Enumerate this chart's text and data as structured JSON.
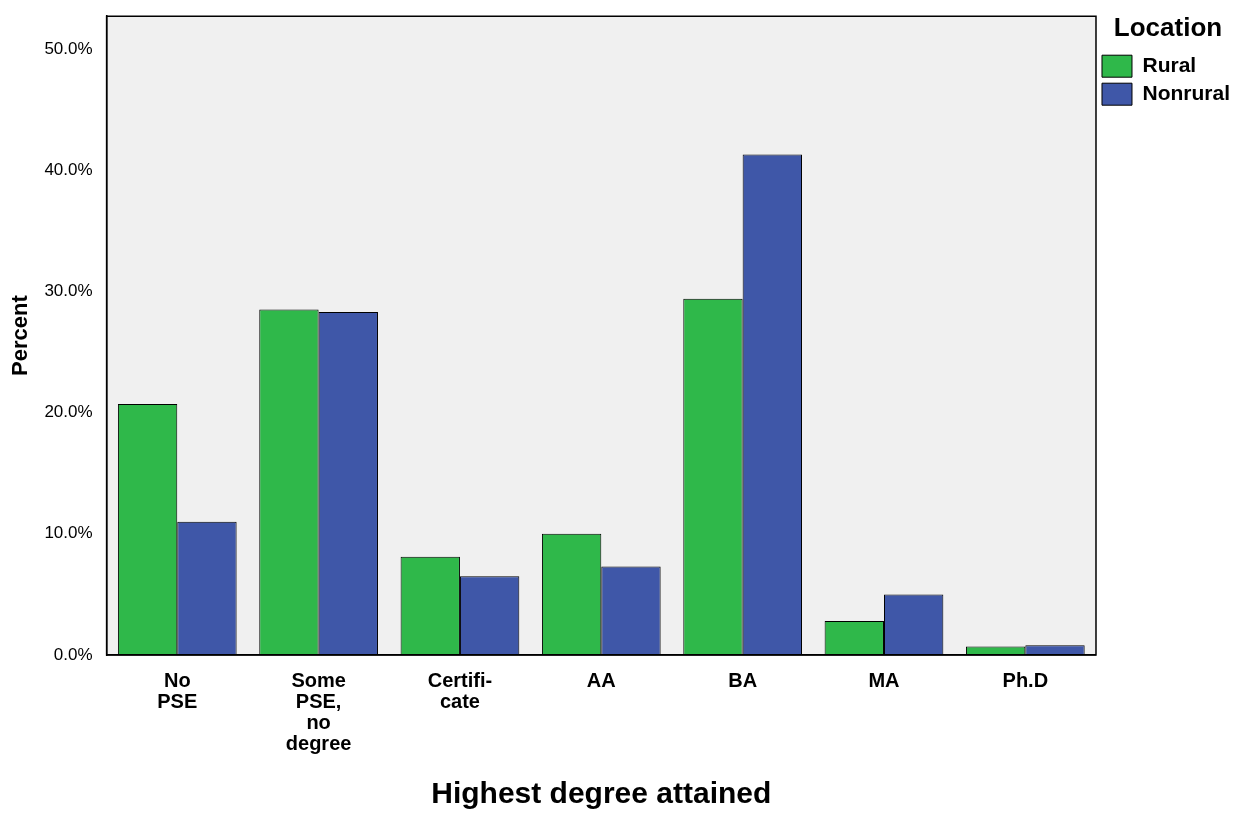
{
  "chart_data": {
    "type": "bar",
    "xlabel": "Highest degree attained",
    "ylabel": "Percent",
    "legend_title": "Location",
    "categories": [
      "No\nPSE",
      "Some\nPSE,\nno\ndegree",
      "Certifi-\ncate",
      "AA",
      "BA",
      "MA",
      "Ph.D"
    ],
    "series": [
      {
        "name": "Rural",
        "color": "#2fb84a",
        "values": [
          20.7,
          28.5,
          8.1,
          10.0,
          29.4,
          2.8,
          0.7
        ]
      },
      {
        "name": "Nonrural",
        "color": "#3f57a8",
        "values": [
          11.0,
          28.3,
          6.5,
          7.3,
          41.3,
          5.0,
          0.8
        ]
      }
    ],
    "ylim": [
      0,
      52.7
    ],
    "yticks": [
      {
        "value": 0,
        "label": "0.0%"
      },
      {
        "value": 10,
        "label": "10.0%"
      },
      {
        "value": 20,
        "label": "20.0%"
      },
      {
        "value": 30,
        "label": "30.0%"
      },
      {
        "value": 40,
        "label": "40.0%"
      },
      {
        "value": 50,
        "label": "50.0%"
      }
    ],
    "grid": false,
    "legend": "top right"
  }
}
